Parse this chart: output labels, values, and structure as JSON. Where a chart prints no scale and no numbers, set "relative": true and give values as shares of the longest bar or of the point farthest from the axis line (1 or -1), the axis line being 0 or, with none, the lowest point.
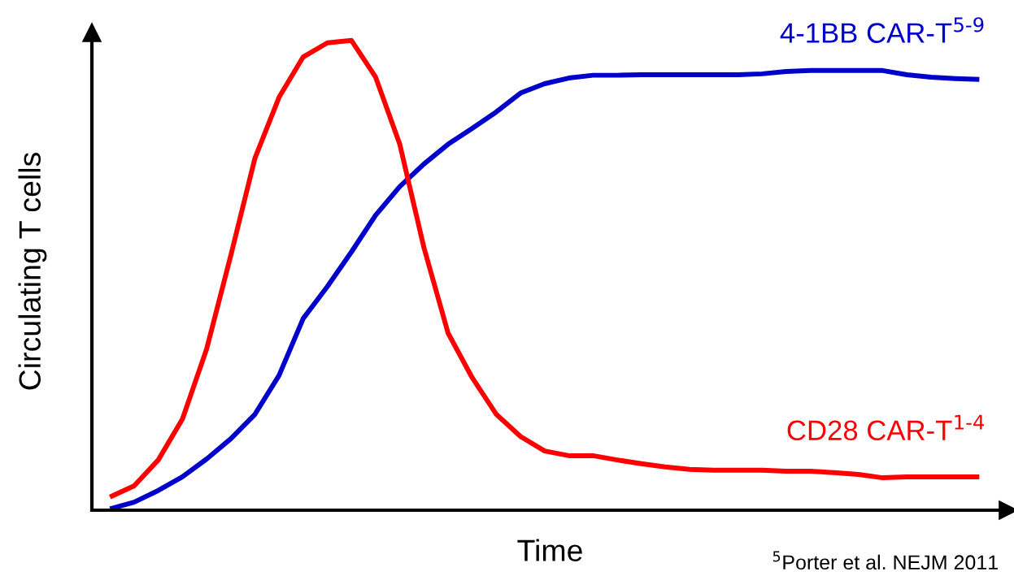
{
  "chart_data": {
    "type": "line",
    "relative": true,
    "xlabel": "Time",
    "ylabel": "Circulating T cells",
    "categories": [
      null,
      null,
      null,
      null,
      null,
      null,
      null,
      null,
      null,
      null,
      null,
      null,
      null,
      null,
      null,
      null,
      null,
      null,
      null,
      null,
      null,
      null,
      null,
      null,
      null,
      null,
      null,
      null,
      null,
      null,
      null,
      null,
      null,
      null,
      null,
      null,
      null
    ],
    "series": [
      {
        "name": "4-1BB CAR-T$^{5-9}$",
        "color": "#0000cc",
        "values": [
          0.003,
          0.017,
          0.042,
          0.071,
          0.109,
          0.152,
          0.204,
          0.287,
          0.408,
          0.476,
          0.55,
          0.628,
          0.689,
          0.737,
          0.779,
          0.813,
          0.848,
          0.888,
          0.908,
          0.92,
          0.926,
          0.926,
          0.927,
          0.927,
          0.927,
          0.927,
          0.927,
          0.929,
          0.934,
          0.936,
          0.936,
          0.936,
          0.936,
          0.927,
          0.922,
          0.919,
          0.917
        ]
      },
      {
        "name": "CD28 CAR-T$^{1-4}$",
        "color": "#ff0000",
        "values": [
          0.028,
          0.052,
          0.107,
          0.194,
          0.343,
          0.542,
          0.749,
          0.879,
          0.965,
          0.995,
          1.0,
          0.922,
          0.779,
          0.559,
          0.377,
          0.282,
          0.204,
          0.157,
          0.126,
          0.116,
          0.116,
          0.107,
          0.099,
          0.092,
          0.087,
          0.085,
          0.085,
          0.085,
          0.083,
          0.083,
          0.08,
          0.076,
          0.069,
          0.071,
          0.071,
          0.071,
          0.071
        ]
      }
    ],
    "annotations": [
      "$^{5}$Porter et al. NEJM 2011"
    ],
    "grid": false,
    "legend": false,
    "marker": "none",
    "line_style": "solid"
  }
}
